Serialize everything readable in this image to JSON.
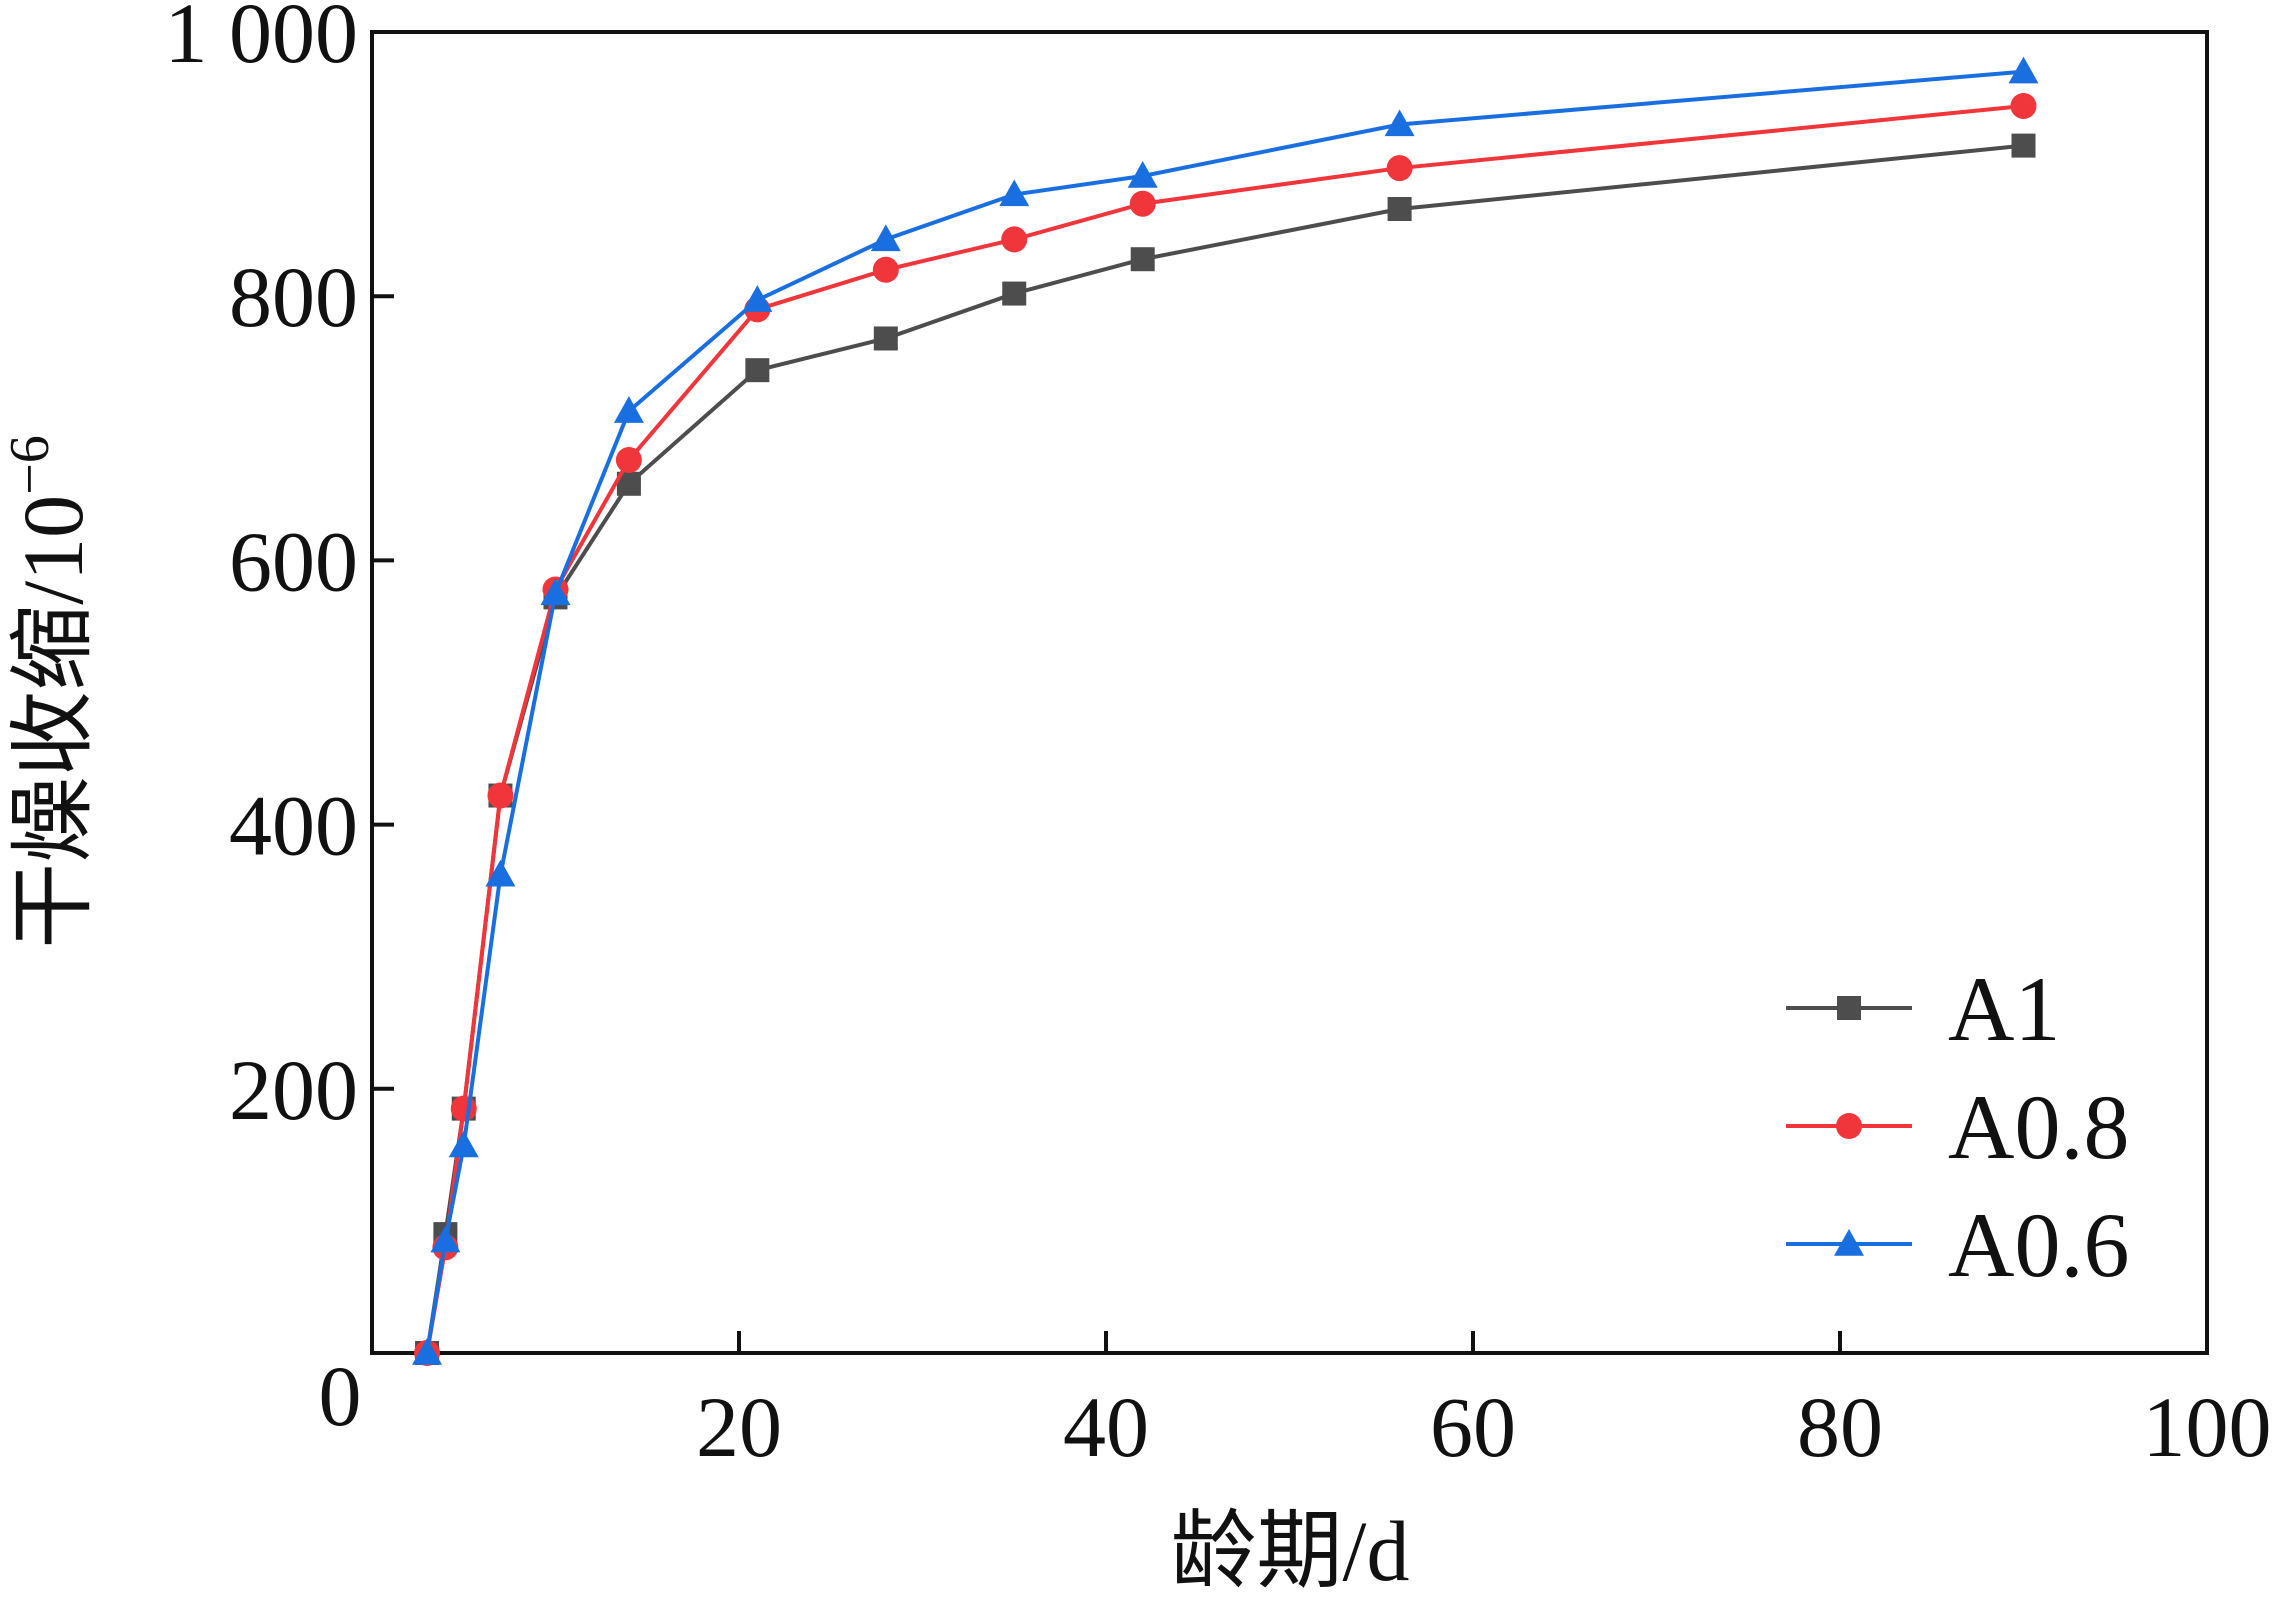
{
  "chart_data": {
    "type": "line",
    "xlabel": "龄期/d",
    "ylabel": "干燥收缩/10",
    "ylabel_superscript": "−6",
    "xlim": [
      0,
      100
    ],
    "ylim": [
      0,
      1000
    ],
    "x_ticks": [
      20,
      40,
      60,
      80,
      100
    ],
    "y_ticks": [
      200,
      400,
      600,
      800,
      1000
    ],
    "origin_label": "0",
    "x_tick_labels": [
      "20",
      "40",
      "60",
      "80",
      "100"
    ],
    "y_tick_labels": [
      "200",
      "400",
      "600",
      "800",
      "1 000"
    ],
    "grid": false,
    "legend_position": "bottom-right",
    "series": [
      {
        "name": "A1",
        "color": "#4d4d4d",
        "marker": "square",
        "x": [
          3,
          4,
          5,
          7,
          10,
          14,
          21,
          28,
          35,
          42,
          56,
          90
        ],
        "y": [
          0,
          90,
          185,
          422,
          572,
          658,
          744,
          768,
          802,
          828,
          866,
          914
        ]
      },
      {
        "name": "A0.8",
        "color": "#f0353b",
        "marker": "circle",
        "x": [
          3,
          4,
          5,
          7,
          10,
          14,
          21,
          28,
          35,
          42,
          56,
          90
        ],
        "y": [
          0,
          80,
          185,
          422,
          578,
          676,
          790,
          820,
          843,
          870,
          897,
          944
        ]
      },
      {
        "name": "A0.6",
        "color": "#1a6fe0",
        "marker": "triangle",
        "x": [
          3,
          4,
          5,
          7,
          10,
          14,
          21,
          28,
          35,
          42,
          56,
          90
        ],
        "y": [
          0,
          85,
          157,
          362,
          575,
          713,
          797,
          843,
          877,
          891,
          930,
          970
        ]
      }
    ]
  }
}
